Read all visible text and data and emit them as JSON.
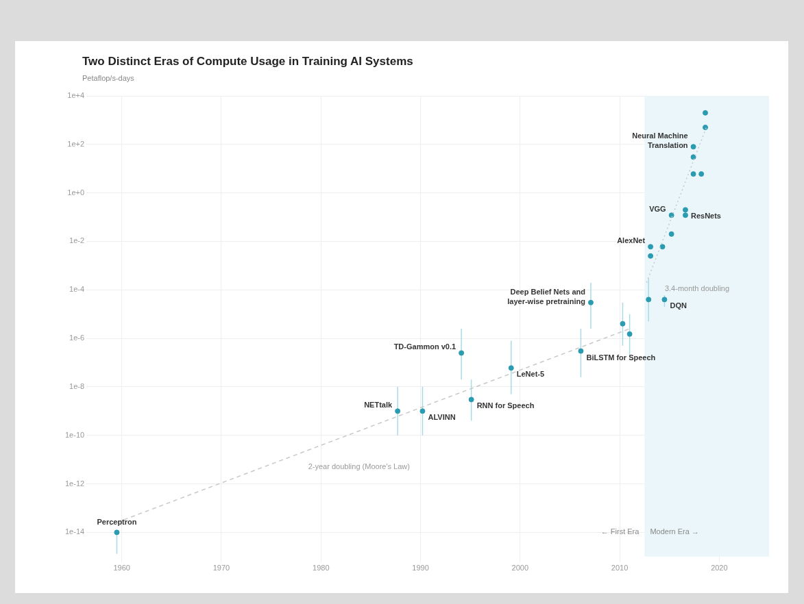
{
  "chart_data": {
    "type": "scatter",
    "title": "Two Distinct Eras of Compute Usage in Training AI Systems",
    "ylabel": "Petaflop/s-days",
    "log": "y",
    "grid": true,
    "legend": false,
    "xlim": [
      1957,
      2025
    ],
    "xticks": [
      1960,
      1970,
      1980,
      1990,
      2000,
      2010,
      2020
    ],
    "ylim": [
      1e-15,
      10000
    ],
    "yticks": [
      {
        "value": 1e-14,
        "label": "1e-14"
      },
      {
        "value": 1e-12,
        "label": "1e-12"
      },
      {
        "value": 1e-10,
        "label": "1e-10"
      },
      {
        "value": 1e-08,
        "label": "1e-8"
      },
      {
        "value": 1e-06,
        "label": "1e-6"
      },
      {
        "value": 0.0001,
        "label": "1e-4"
      },
      {
        "value": 0.01,
        "label": "1e-2"
      },
      {
        "value": 1,
        "label": "1e+0"
      },
      {
        "value": 100,
        "label": "1e+2"
      },
      {
        "value": 10000,
        "label": "1e+4"
      }
    ],
    "bands": [
      {
        "axis": "x",
        "from": 2012.5,
        "to": 2025,
        "color": "#eaf6f9"
      }
    ],
    "annotations": [
      "← First Era",
      "Modern Era →"
    ],
    "series": [
      {
        "type": "line",
        "name": "2-year doubling (Moore's Law)",
        "color": "#c8c8c8",
        "line_style": "dashed",
        "x": [
          1958.8,
          2011
        ],
        "values": [
          2e-14,
          2.5e-06
        ]
      },
      {
        "type": "line",
        "name": "3.4-month doubling",
        "color": "#c8c8c8",
        "line_style": "dotted",
        "x": [
          2012.7,
          2018.7
        ],
        "values": [
          0.0002,
          500
        ]
      },
      {
        "marker": "circle",
        "color": "#2a9bb0",
        "x": [
          1959.5,
          1987.7,
          1990.2,
          1994.1,
          1995.1,
          1999.1,
          2006.1,
          2007.1,
          2010.3,
          2011.0,
          2012.9,
          2014.5,
          2013.1,
          2013.1,
          2014.3,
          2015.2,
          2015.2,
          2016.6,
          2016.6,
          2017.4,
          2018.2,
          2017.4,
          2017.4,
          2018.6,
          2018.6
        ],
        "values": [
          1e-14,
          1e-09,
          1e-09,
          2.5e-07,
          3e-09,
          6e-08,
          3e-07,
          3e-05,
          4e-06,
          1.5e-06,
          4e-05,
          4e-05,
          0.006,
          0.0025,
          0.006,
          0.02,
          0.12,
          0.2,
          0.12,
          6,
          6,
          80,
          30,
          500,
          2000
        ],
        "errors": [
          [
            1.3e-15,
            1e-14
          ],
          [
            1e-10,
            1e-08
          ],
          [
            1e-10,
            1e-08
          ],
          [
            2e-08,
            2.5e-06
          ],
          [
            4e-10,
            2e-08
          ],
          [
            5e-09,
            8e-07
          ],
          [
            2.5e-08,
            2.5e-06
          ],
          [
            2.5e-06,
            0.0002
          ],
          [
            5e-07,
            3e-05
          ],
          [
            2e-07,
            1e-05
          ],
          [
            5e-06,
            0.0003
          ],
          [
            2e-05,
            6e-05
          ],
          null,
          null,
          null,
          null,
          null,
          null,
          null,
          null,
          null,
          null,
          null,
          null,
          null
        ],
        "value_labels": [
          "Perceptron",
          "NETtalk",
          "ALVINN",
          "TD-Gammon v0.1",
          "RNN for Speech",
          "LeNet-5",
          "BiLSTM for Speech",
          "Deep Belief Nets and\nlayer-wise pretraining",
          null,
          null,
          null,
          "DQN",
          "AlexNet",
          null,
          null,
          null,
          "VGG",
          "ResNets",
          null,
          null,
          null,
          "Neural Machine\nTranslation",
          null,
          null,
          null
        ]
      }
    ]
  }
}
